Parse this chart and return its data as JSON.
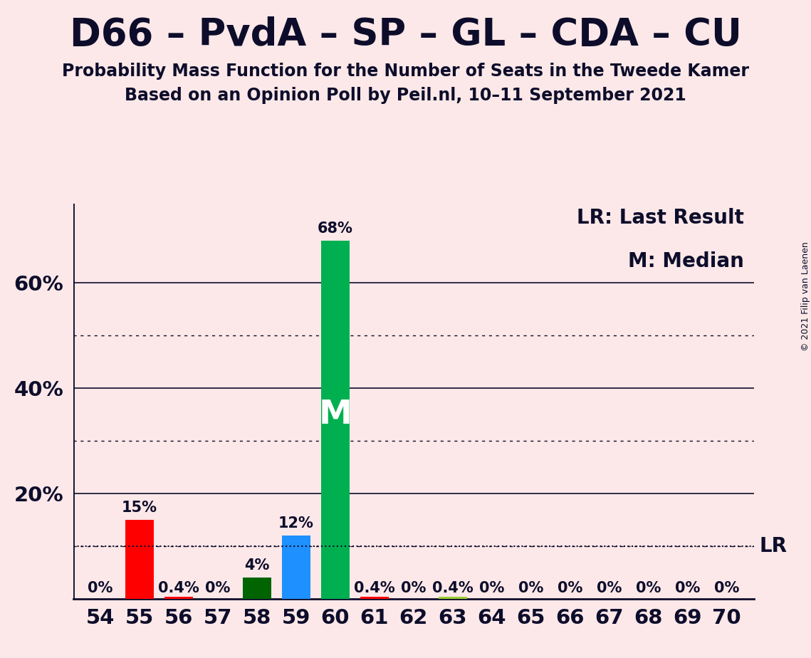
{
  "title": "D66 – PvdA – SP – GL – CDA – CU",
  "subtitle1": "Probability Mass Function for the Number of Seats in the Tweede Kamer",
  "subtitle2": "Based on an Opinion Poll by Peil.nl, 10–11 September 2021",
  "copyright": "© 2021 Filip van Laenen",
  "background_color": "#fce8e8",
  "seats": [
    54,
    55,
    56,
    57,
    58,
    59,
    60,
    61,
    62,
    63,
    64,
    65,
    66,
    67,
    68,
    69,
    70
  ],
  "probabilities": [
    0.0,
    15.0,
    0.4,
    0.0,
    4.0,
    12.0,
    68.0,
    0.4,
    0.0,
    0.4,
    0.0,
    0.0,
    0.0,
    0.0,
    0.0,
    0.0,
    0.0
  ],
  "bar_colors": [
    "#ff0000",
    "#ff0000",
    "#ff0000",
    "#ff0000",
    "#006400",
    "#1e90ff",
    "#00b050",
    "#ff0000",
    "#ff0000",
    "#9acd32",
    "#ff0000",
    "#ff0000",
    "#ff0000",
    "#ff0000",
    "#ff0000",
    "#ff0000",
    "#ff0000"
  ],
  "labels": [
    "0%",
    "15%",
    "0.4%",
    "0%",
    "4%",
    "12%",
    "68%",
    "0.4%",
    "0%",
    "0.4%",
    "0%",
    "0%",
    "0%",
    "0%",
    "0%",
    "0%",
    "0%"
  ],
  "median_seat": 60,
  "median_label": "M",
  "lr_value": 10.0,
  "lr_label": "LR",
  "ylim": [
    0,
    75
  ],
  "grid_solid": [
    20,
    40,
    60
  ],
  "grid_dotted": [
    10,
    30,
    50
  ],
  "title_fontsize": 38,
  "subtitle_fontsize": 17,
  "axis_fontsize": 21,
  "label_fontsize": 15,
  "legend_fontsize": 20,
  "copyright_fontsize": 9,
  "text_color": "#0d0d2b"
}
